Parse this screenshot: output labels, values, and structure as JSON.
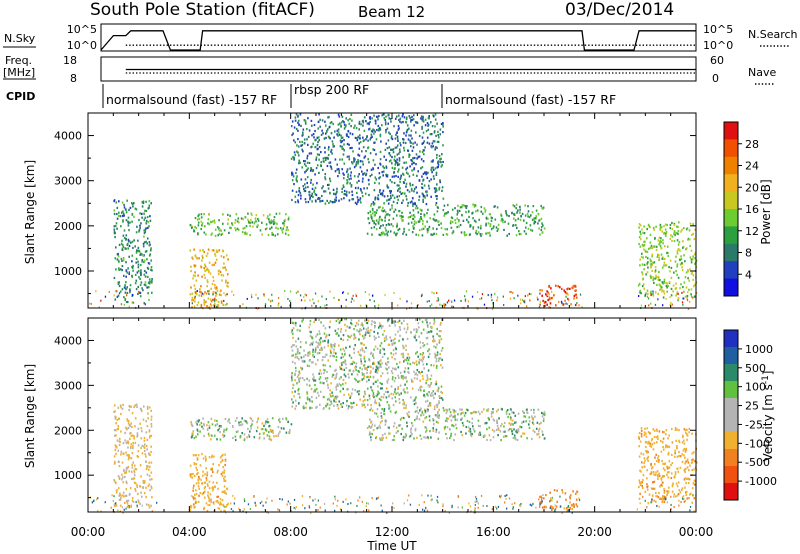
{
  "header": {
    "station": "South Pole Station (fitACF)",
    "beam": "Beam 12",
    "date": "03/Dec/2014"
  },
  "params": {
    "nsky_label": "N.Sky",
    "nsky_ticks": [
      "10^5",
      "10^0"
    ],
    "nsearch_label": "N.Search",
    "nsearch_ticks": [
      "10^5",
      "10^0"
    ],
    "freq_label_1": "Freq.",
    "freq_label_2": "[MHz]",
    "freq_ticks": [
      "18",
      "8"
    ],
    "nave_label": "Nave",
    "nave_ticks": [
      "60",
      "0"
    ],
    "cpid_label": "CPID",
    "cpid_segments": [
      {
        "label": "normalsound (fast) -157 RF"
      },
      {
        "label": "rbsp 200 RF"
      },
      {
        "label": "normalsound (fast) -157 RF"
      }
    ]
  },
  "axes": {
    "xlabel": "Time UT",
    "x_ticks": [
      "00:00",
      "04:00",
      "08:00",
      "12:00",
      "16:00",
      "20:00",
      "00:00"
    ],
    "ylabel": "Slant Range [km]",
    "y_ticks": [
      "1000",
      "2000",
      "3000",
      "4000"
    ]
  },
  "colorbars": {
    "power": {
      "label": "Power [dB]",
      "ticks": [
        "4",
        "8",
        "12",
        "16",
        "20",
        "24",
        "28"
      ],
      "colors": [
        "#1010e0",
        "#2040c0",
        "#2a7a6a",
        "#2aa040",
        "#6ccc30",
        "#c8c820",
        "#f0b020",
        "#f08000",
        "#f05000",
        "#e01010"
      ]
    },
    "velocity": {
      "label": "Velocity [m s^-1]",
      "ticks": [
        "1000",
        "500",
        "100",
        "25",
        "-25",
        "-100",
        "-500",
        "-1000"
      ],
      "colors": [
        "#2030c0",
        "#2060a0",
        "#2a8a6a",
        "#60c040",
        "#b4b4b4",
        "#b4b4b4",
        "#f0b030",
        "#f08020",
        "#f05010",
        "#e01010"
      ]
    }
  },
  "chart_data": [
    {
      "type": "line",
      "title": "South Pole Station (fitACF)",
      "panel": "sky noise / search noise",
      "ylabel": "N.Sky",
      "xlim": [
        "00:00",
        "24:00"
      ],
      "ylim": [
        0,
        5
      ],
      "series": [
        {
          "name": "N.Sky",
          "x": [
            0.0,
            0.5,
            1.0,
            1.2,
            2.5,
            2.8,
            4.0,
            4.1,
            8.0,
            12.0,
            16.0,
            19.4,
            19.5,
            21.5,
            21.7,
            24.0
          ],
          "values": [
            0,
            3,
            3,
            4,
            4,
            0,
            0,
            4,
            4,
            4,
            4,
            4,
            0,
            0,
            4,
            4
          ]
        },
        {
          "name": "N.Search",
          "x": [
            1.0,
            2.5,
            4.1,
            8.0,
            12.0,
            16.0,
            19.4,
            21.7,
            24.0
          ],
          "values": [
            1,
            1,
            1,
            1,
            1,
            1,
            1,
            1,
            1
          ]
        }
      ]
    },
    {
      "type": "line",
      "panel": "frequency / nave",
      "ylabel": "Freq. [MHz]",
      "ylim": [
        8,
        18
      ],
      "series": [
        {
          "name": "Freq.",
          "x": [
            1.0,
            2.5,
            4.1,
            19.4,
            21.7,
            24.0
          ],
          "values": [
            13,
            13,
            13,
            13,
            13,
            13
          ]
        },
        {
          "name": "Nave",
          "x": [
            1.0,
            2.5,
            4.1,
            19.4,
            21.7,
            24.0
          ],
          "values": [
            20,
            20,
            20,
            20,
            20,
            20
          ]
        }
      ]
    },
    {
      "type": "heatmap",
      "panel": "power",
      "xlabel": "Time UT",
      "ylabel": "Slant Range [km]",
      "xlim": [
        "00:00",
        "24:00"
      ],
      "ylim": [
        180,
        4500
      ],
      "colorbar": "Power [dB]",
      "colorbar_ticks": [
        4,
        8,
        12,
        16,
        20,
        24,
        28
      ],
      "echo_regions": [
        {
          "t_start": 1.0,
          "t_end": 2.5,
          "r_min": 300,
          "r_max": 2600,
          "value": 8
        },
        {
          "t_start": 4.0,
          "t_end": 8.0,
          "r_min": 1800,
          "r_max": 2300,
          "value": 12
        },
        {
          "t_start": 4.0,
          "t_end": 5.5,
          "r_min": 200,
          "r_max": 1500,
          "value": 20
        },
        {
          "t_start": 8.0,
          "t_end": 14.0,
          "r_min": 2500,
          "r_max": 4500,
          "value": 6
        },
        {
          "t_start": 11.0,
          "t_end": 18.0,
          "r_min": 1800,
          "r_max": 2500,
          "value": 10
        },
        {
          "t_start": 17.8,
          "t_end": 19.3,
          "r_min": 250,
          "r_max": 700,
          "value": 28
        },
        {
          "t_start": 21.7,
          "t_end": 24.0,
          "r_min": 400,
          "r_max": 2100,
          "value": 14
        }
      ]
    },
    {
      "type": "heatmap",
      "panel": "velocity",
      "xlabel": "Time UT",
      "ylabel": "Slant Range [km]",
      "xlim": [
        "00:00",
        "24:00"
      ],
      "ylim": [
        180,
        4500
      ],
      "colorbar": "Velocity [m s^-1]",
      "colorbar_ticks": [
        1000,
        500,
        100,
        25,
        -25,
        -100,
        -500,
        -1000
      ],
      "echo_regions": [
        {
          "t_start": 1.0,
          "t_end": 2.5,
          "r_min": 300,
          "r_max": 2600,
          "value": -150
        },
        {
          "t_start": 4.0,
          "t_end": 8.0,
          "r_min": 1800,
          "r_max": 2300,
          "value": 0
        },
        {
          "t_start": 4.0,
          "t_end": 5.5,
          "r_min": 200,
          "r_max": 1500,
          "value": -400
        },
        {
          "t_start": 8.0,
          "t_end": 14.0,
          "r_min": 2500,
          "r_max": 4500,
          "value": 0
        },
        {
          "t_start": 11.0,
          "t_end": 18.0,
          "r_min": 1800,
          "r_max": 2500,
          "value": 0
        },
        {
          "t_start": 17.8,
          "t_end": 19.3,
          "r_min": 250,
          "r_max": 700,
          "value": -600
        },
        {
          "t_start": 21.7,
          "t_end": 24.0,
          "r_min": 400,
          "r_max": 2100,
          "value": -400
        }
      ]
    }
  ]
}
